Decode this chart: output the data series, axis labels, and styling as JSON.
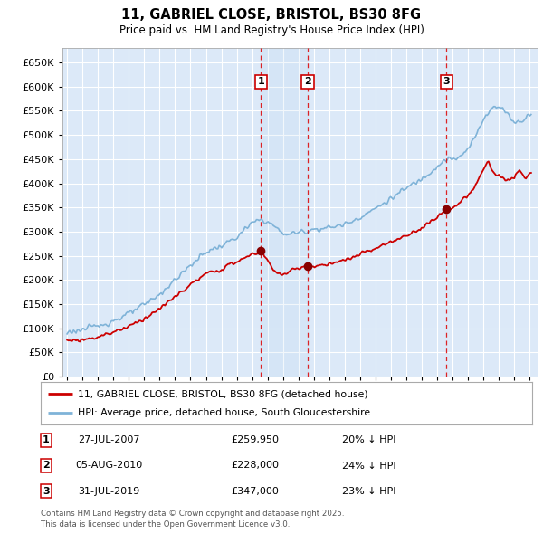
{
  "title": "11, GABRIEL CLOSE, BRISTOL, BS30 8FG",
  "subtitle": "Price paid vs. HM Land Registry's House Price Index (HPI)",
  "legend_label_red": "11, GABRIEL CLOSE, BRISTOL, BS30 8FG (detached house)",
  "legend_label_blue": "HPI: Average price, detached house, South Gloucestershire",
  "footer": "Contains HM Land Registry data © Crown copyright and database right 2025.\nThis data is licensed under the Open Government Licence v3.0.",
  "transactions": [
    {
      "num": 1,
      "date": "27-JUL-2007",
      "price": "£259,950",
      "pct": "20% ↓ HPI",
      "x_year": 2007.57
    },
    {
      "num": 2,
      "date": "05-AUG-2010",
      "price": "£228,000",
      "pct": "24% ↓ HPI",
      "x_year": 2010.6
    },
    {
      "num": 3,
      "date": "31-JUL-2019",
      "price": "£347,000",
      "pct": "23% ↓ HPI",
      "x_year": 2019.58
    }
  ],
  "ylim": [
    0,
    680000
  ],
  "yticks": [
    0,
    50000,
    100000,
    150000,
    200000,
    250000,
    300000,
    350000,
    400000,
    450000,
    500000,
    550000,
    600000,
    650000
  ],
  "background_color": "#ffffff",
  "plot_bg_color": "#dce9f8",
  "grid_color": "#ffffff",
  "hpi_color": "#7fb3d8",
  "price_color": "#cc0000",
  "xlim_left": 1994.7,
  "xlim_right": 2025.5
}
